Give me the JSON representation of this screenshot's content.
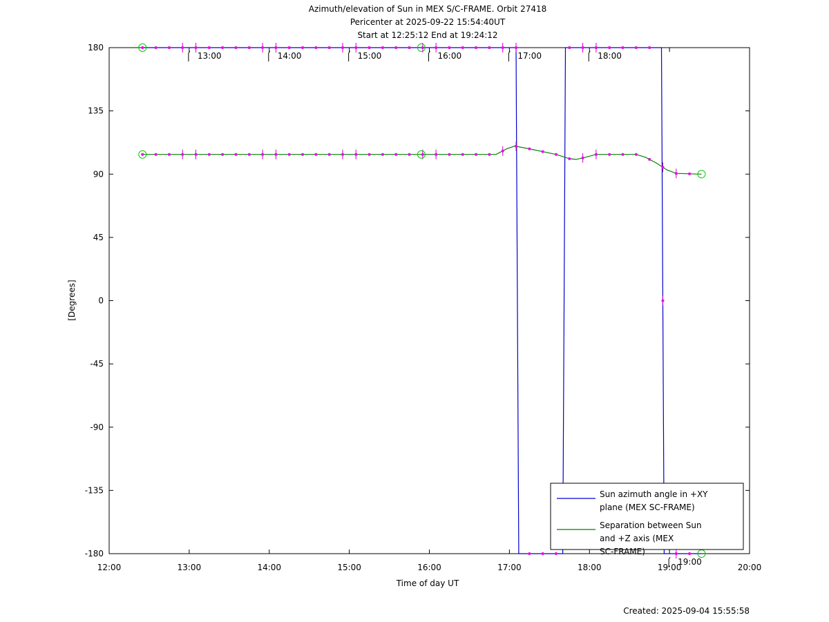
{
  "chart_data": {
    "type": "line",
    "title": [
      "Azimuth/elevation of Sun in MEX S/C-FRAME.  Orbit 27418",
      "Pericenter at 2025-09-22 15:54:40UT",
      "Start at 12:25:12 End at 19:24:12"
    ],
    "xlabel": "Time of day UT",
    "ylabel": "[Degrees]",
    "xlim": [
      "12:00",
      "20:00"
    ],
    "ylim": [
      -180,
      180
    ],
    "x_ticks": [
      "12:00",
      "13:00",
      "14:00",
      "15:00",
      "16:00",
      "17:00",
      "18:00",
      "19:00",
      "20:00"
    ],
    "y_ticks": [
      180,
      135,
      90,
      45,
      0,
      -45,
      -90,
      -135,
      -180
    ],
    "hour_marker_labels": [
      "13:00",
      "14:00",
      "15:00",
      "16:00",
      "17:00",
      "18:00",
      "19:00"
    ],
    "legend_position": "bottom-right",
    "series": [
      {
        "name": "Sun azimuth angle in +XY plane (MEX SC-FRAME)",
        "color": "#0000cc",
        "points": [
          [
            "12:25",
            180
          ],
          [
            "17:05",
            180
          ],
          [
            "17:07",
            -180
          ],
          [
            "17:40",
            -180
          ],
          [
            "17:42",
            180
          ],
          [
            "18:54",
            180
          ],
          [
            "18:56",
            -180
          ],
          [
            "19:24",
            -180
          ]
        ]
      },
      {
        "name": "Separation between Sun and +Z axis (MEX SC-FRAME)",
        "color": "#008000",
        "points": [
          [
            "12:25",
            104
          ],
          [
            "16:50",
            104
          ],
          [
            "16:58",
            108
          ],
          [
            "17:04",
            110
          ],
          [
            "17:15",
            108
          ],
          [
            "17:25",
            106
          ],
          [
            "17:35",
            104
          ],
          [
            "17:45",
            101
          ],
          [
            "17:50",
            100.5
          ],
          [
            "17:57",
            102
          ],
          [
            "18:05",
            104
          ],
          [
            "18:35",
            104
          ],
          [
            "18:42",
            102
          ],
          [
            "18:50",
            98
          ],
          [
            "18:58",
            93
          ],
          [
            "19:05",
            90.5
          ],
          [
            "19:24",
            90
          ]
        ]
      }
    ],
    "special_markers": [
      {
        "time": "12:25",
        "value": 180
      },
      {
        "time": "15:54",
        "value": 180
      },
      {
        "time": "19:24",
        "value": -180
      },
      {
        "time": "12:25",
        "value": 104
      },
      {
        "time": "15:54",
        "value": 104
      },
      {
        "time": "19:24",
        "value": 90
      }
    ],
    "footer": "Created: 2025-09-04 15:55:58"
  }
}
